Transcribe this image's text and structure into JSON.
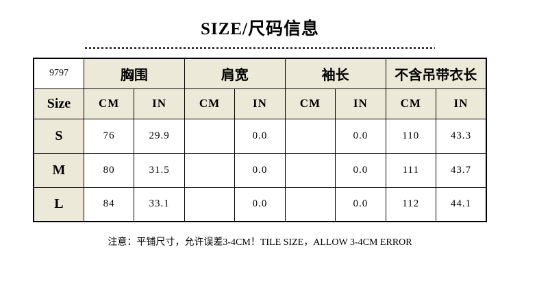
{
  "page": {
    "title": "SIZE/尺码信息",
    "note": "注意：平铺尺寸，允许误差3-4CM！TILE SIZE，ALLOW 3-4CM ERROR"
  },
  "size_chart": {
    "product_code": "9797",
    "corner_label": "Size",
    "measurement_groups": [
      {
        "label": "胸围"
      },
      {
        "label": "肩宽"
      },
      {
        "label": "袖长"
      },
      {
        "label": "不含吊带衣长"
      }
    ],
    "unit_headers": [
      "CM",
      "IN",
      "CM",
      "IN",
      "CM",
      "IN",
      "CM",
      "IN"
    ],
    "rows": [
      {
        "size": "S",
        "values": [
          "76",
          "29.9",
          "",
          "0.0",
          "",
          "0.0",
          "110",
          "43.3"
        ]
      },
      {
        "size": "M",
        "values": [
          "80",
          "31.5",
          "",
          "0.0",
          "",
          "0.0",
          "111",
          "43.7"
        ]
      },
      {
        "size": "L",
        "values": [
          "84",
          "33.1",
          "",
          "0.0",
          "",
          "0.0",
          "112",
          "44.1"
        ]
      }
    ]
  },
  "colors": {
    "header_bg": "#ece9d8",
    "border": "#000000",
    "text": "#000000",
    "page_bg": "#ffffff"
  }
}
